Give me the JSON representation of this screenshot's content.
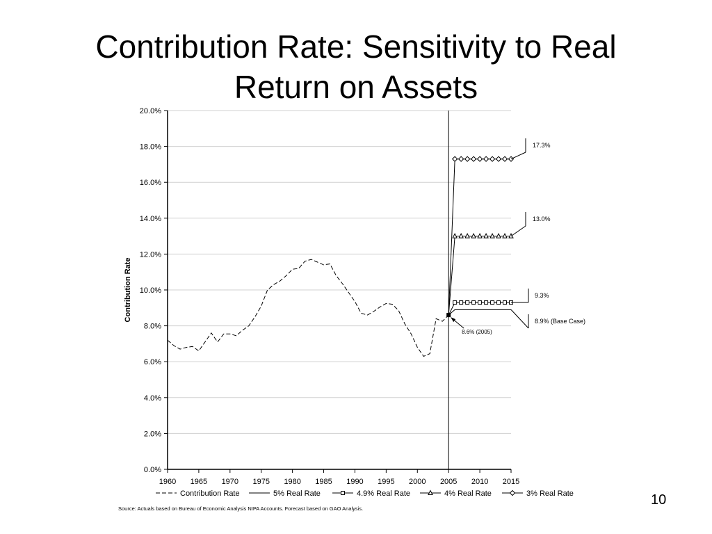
{
  "slide": {
    "title_line1": "Contribution Rate: Sensitivity to Real",
    "title_line2": "Return on Assets",
    "page_number": "10",
    "source": "Source: Actuals based on Bureau of Economic Analysis NIPA Accounts.  Forecast based on GAO Analysis."
  },
  "chart_data": {
    "type": "line",
    "ylabel": "Contribution Rate",
    "xlim": [
      1960,
      2015
    ],
    "ylim": [
      0,
      20
    ],
    "x_ticks": [
      1960,
      1965,
      1970,
      1975,
      1980,
      1985,
      1990,
      1995,
      2000,
      2005,
      2010,
      2015
    ],
    "y_ticks": [
      0,
      2,
      4,
      6,
      8,
      10,
      12,
      14,
      16,
      18,
      20
    ],
    "y_tick_labels": [
      "0.0%",
      "2.0%",
      "4.0%",
      "6.0%",
      "8.0%",
      "10.0%",
      "12.0%",
      "14.0%",
      "16.0%",
      "18.0%",
      "20.0%"
    ],
    "grid": true,
    "legend_position": "bottom",
    "vertical_marker_x": 2005,
    "series": [
      {
        "name": "Contribution Rate",
        "style": "dashed",
        "marker": "none",
        "x": [
          1960,
          1961,
          1962,
          1963,
          1964,
          1965,
          1966,
          1967,
          1968,
          1969,
          1970,
          1971,
          1972,
          1973,
          1974,
          1975,
          1976,
          1977,
          1978,
          1979,
          1980,
          1981,
          1982,
          1983,
          1984,
          1985,
          1986,
          1987,
          1988,
          1989,
          1990,
          1991,
          1992,
          1993,
          1994,
          1995,
          1996,
          1997,
          1998,
          1999,
          2000,
          2001,
          2002,
          2003,
          2004,
          2005
        ],
        "y": [
          7.2,
          6.9,
          6.7,
          6.8,
          6.85,
          6.6,
          7.1,
          7.6,
          7.1,
          7.55,
          7.55,
          7.45,
          7.75,
          8.0,
          8.5,
          9.1,
          10.0,
          10.3,
          10.5,
          10.8,
          11.15,
          11.2,
          11.6,
          11.7,
          11.55,
          11.4,
          11.45,
          10.8,
          10.35,
          9.85,
          9.35,
          8.7,
          8.6,
          8.8,
          9.05,
          9.25,
          9.2,
          8.85,
          8.1,
          7.55,
          6.8,
          6.3,
          6.45,
          8.4,
          8.25,
          8.6
        ]
      },
      {
        "name": "5% Real Rate",
        "style": "solid",
        "marker": "none",
        "x": [
          2005,
          2006,
          2007,
          2008,
          2009,
          2010,
          2011,
          2012,
          2013,
          2014,
          2015
        ],
        "y": [
          8.6,
          8.9,
          8.9,
          8.9,
          8.9,
          8.9,
          8.9,
          8.9,
          8.9,
          8.9,
          8.9
        ]
      },
      {
        "name": "4.9% Real Rate",
        "style": "solid",
        "marker": "square",
        "x": [
          2005,
          2006,
          2007,
          2008,
          2009,
          2010,
          2011,
          2012,
          2013,
          2014,
          2015
        ],
        "y": [
          8.6,
          9.3,
          9.3,
          9.3,
          9.3,
          9.3,
          9.3,
          9.3,
          9.3,
          9.3,
          9.3
        ]
      },
      {
        "name": "4% Real Rate",
        "style": "solid",
        "marker": "triangle",
        "x": [
          2005,
          2006,
          2007,
          2008,
          2009,
          2010,
          2011,
          2012,
          2013,
          2014,
          2015
        ],
        "y": [
          8.6,
          13.0,
          13.0,
          13.0,
          13.0,
          13.0,
          13.0,
          13.0,
          13.0,
          13.0,
          13.0
        ]
      },
      {
        "name": "3% Real Rate",
        "style": "solid",
        "marker": "diamond",
        "x": [
          2005,
          2006,
          2007,
          2008,
          2009,
          2010,
          2011,
          2012,
          2013,
          2014,
          2015
        ],
        "y": [
          8.6,
          17.3,
          17.3,
          17.3,
          17.3,
          17.3,
          17.3,
          17.3,
          17.3,
          17.3,
          17.3
        ]
      }
    ],
    "annotations": [
      {
        "text": "17.3%",
        "series": "3% Real Rate",
        "value": 17.3
      },
      {
        "text": "13.0%",
        "series": "4% Real Rate",
        "value": 13.0
      },
      {
        "text": "9.3%",
        "series": "4.9% Real Rate",
        "value": 9.3
      },
      {
        "text": "8.9% (Base Case)",
        "series": "5% Real Rate",
        "value": 8.9
      },
      {
        "text": "8.6% (2005)",
        "series": "Contribution Rate",
        "value": 8.6,
        "x": 2005
      }
    ]
  }
}
